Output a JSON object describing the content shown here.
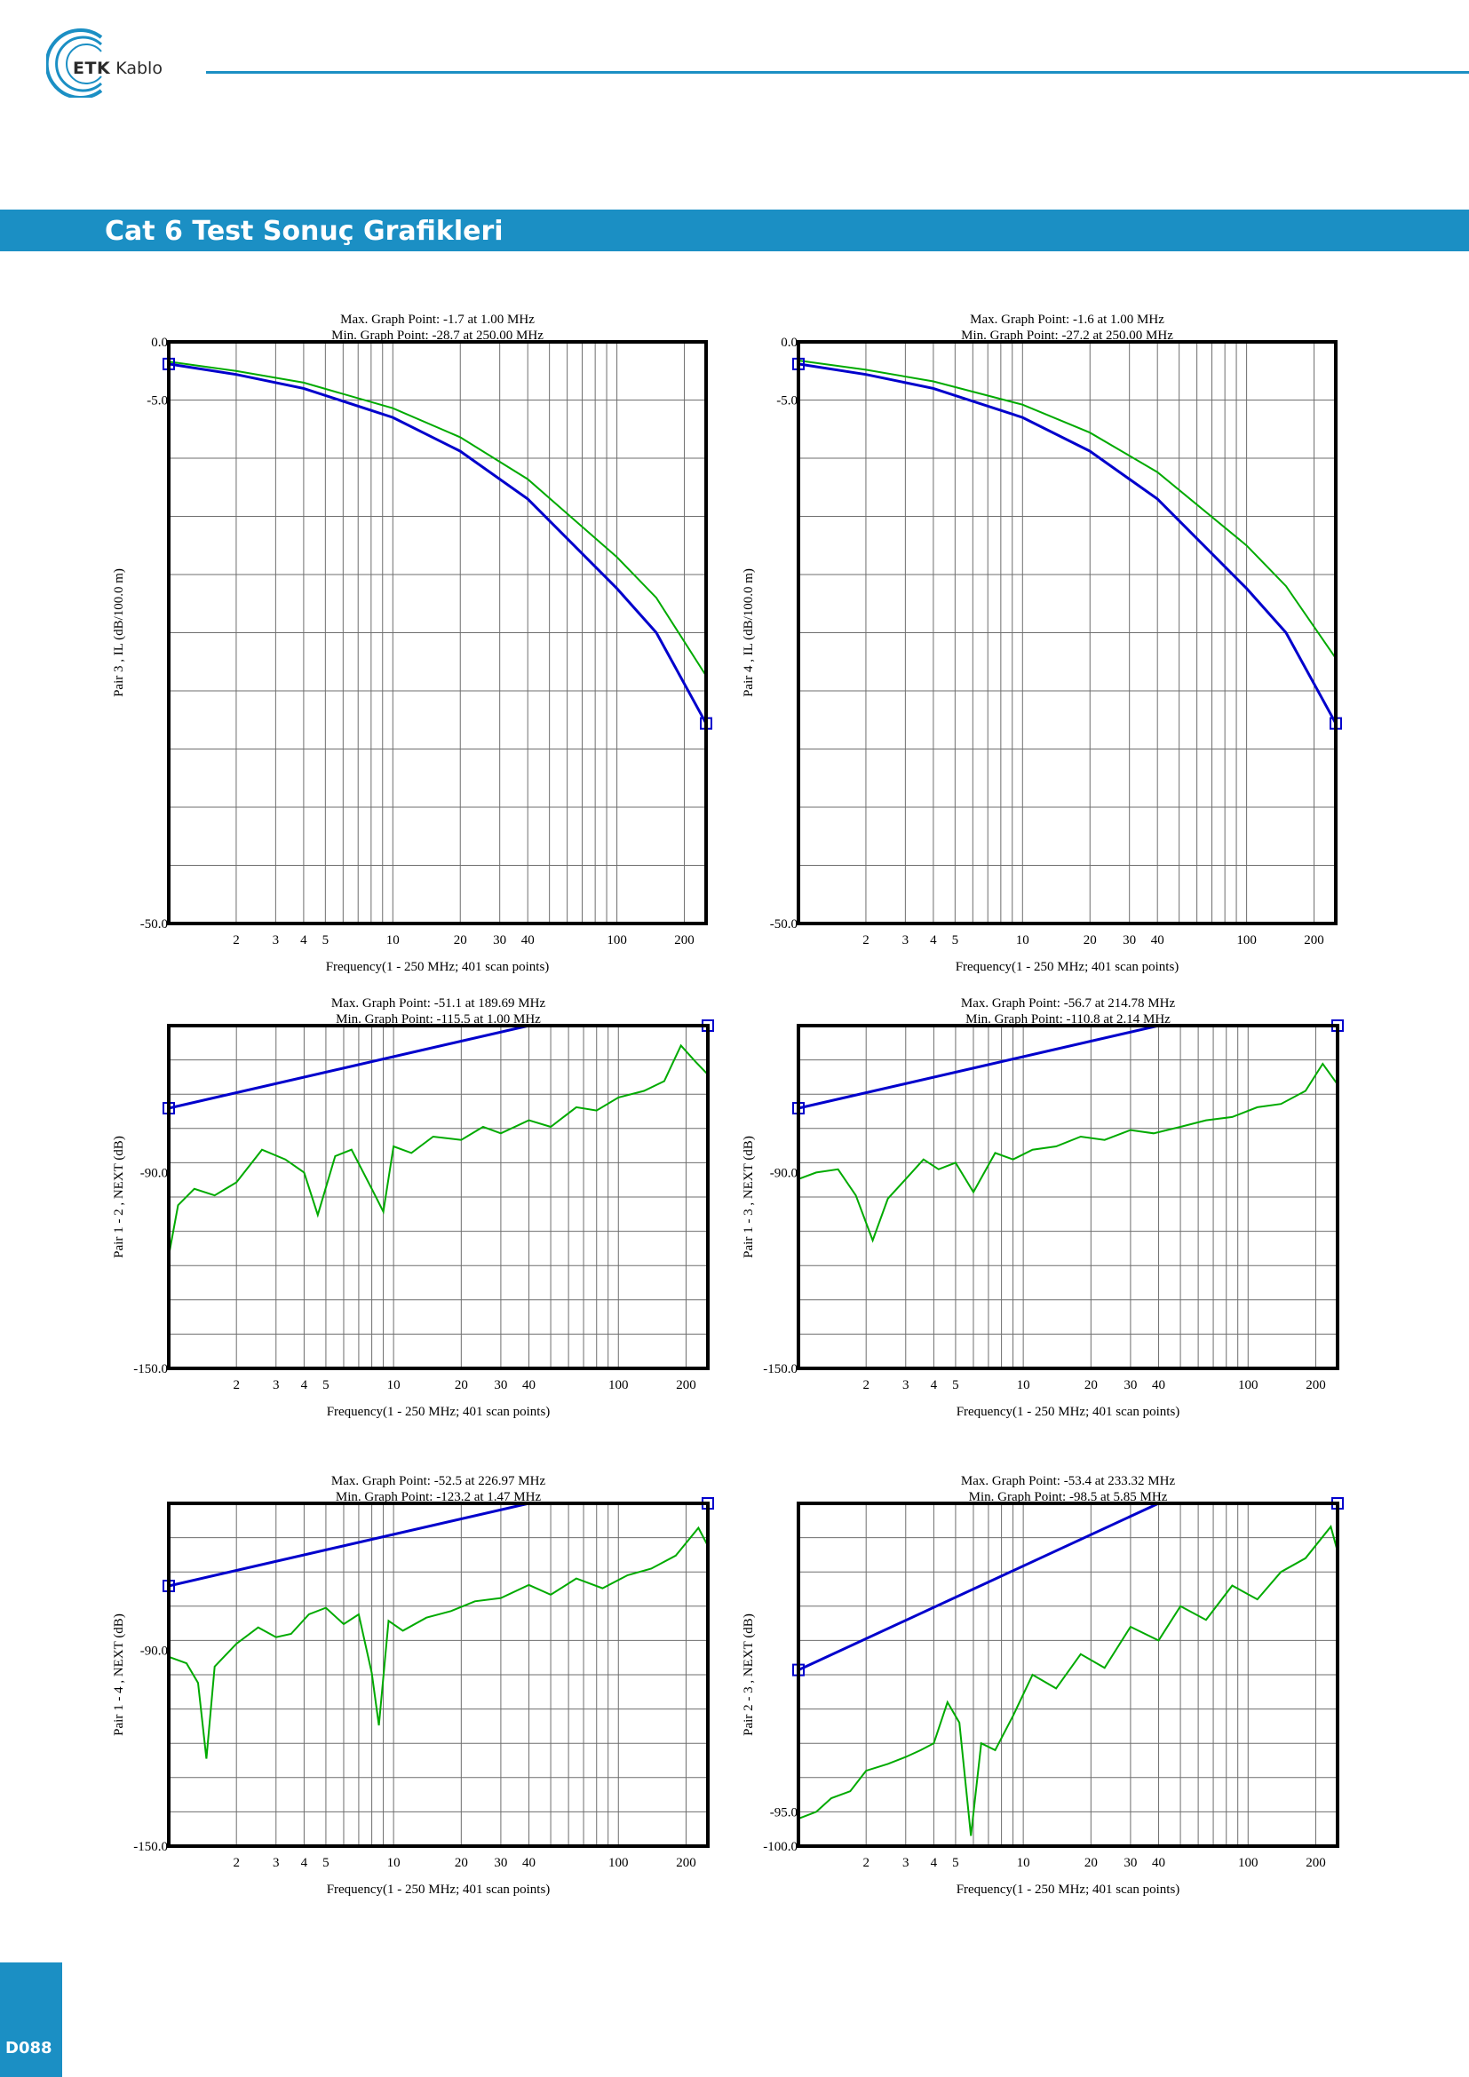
{
  "brand": {
    "logo_text_bold": "ETK",
    "logo_text": "Kablo",
    "color": "#1b8fc4"
  },
  "header": {
    "title": "Cat 6 Test Sonuç Grafikleri"
  },
  "footer": {
    "page_number": "D088"
  },
  "chart_data": [
    {
      "type": "line",
      "max_label": "Max. Graph Point: -1.7 at 1.00 MHz",
      "min_label": "Min. Graph Point: -28.7 at 250.00 MHz",
      "ylabel": "Pair 3 , IL (dB/100.0 m)",
      "xlabel": "Frequency(1 - 250 MHz; 401 scan points)",
      "x_scale": "log",
      "xlim": [
        1,
        250
      ],
      "x_ticks": [
        2,
        3,
        4,
        5,
        10,
        20,
        30,
        40,
        100,
        200
      ],
      "y_tick_labels": [
        {
          "value": 0,
          "text": "0.0"
        },
        {
          "value": -5,
          "text": "-5.0"
        },
        {
          "value": -50,
          "text": "-50.0"
        }
      ],
      "ylim": [
        -50,
        0
      ],
      "series": [
        {
          "role": "limit",
          "color": "#0000cc",
          "x": [
            1,
            2,
            4,
            10,
            20,
            40,
            100,
            150,
            250
          ],
          "y": [
            -1.9,
            -2.8,
            -4.0,
            -6.5,
            -9.4,
            -13.5,
            -21.2,
            -25.0,
            -32.8
          ]
        },
        {
          "role": "measured",
          "color": "#00aa00",
          "x": [
            1,
            2,
            4,
            10,
            20,
            40,
            100,
            150,
            250
          ],
          "y": [
            -1.7,
            -2.5,
            -3.5,
            -5.7,
            -8.2,
            -11.8,
            -18.5,
            -22.0,
            -28.7
          ]
        }
      ]
    },
    {
      "type": "line",
      "max_label": "Max. Graph Point: -1.6 at 1.00 MHz",
      "min_label": "Min. Graph Point: -27.2 at 250.00 MHz",
      "ylabel": "Pair 4 , IL (dB/100.0 m)",
      "xlabel": "Frequency(1 - 250 MHz; 401 scan points)",
      "x_scale": "log",
      "xlim": [
        1,
        250
      ],
      "x_ticks": [
        2,
        3,
        4,
        5,
        10,
        20,
        30,
        40,
        100,
        200
      ],
      "y_tick_labels": [
        {
          "value": 0,
          "text": "0.0"
        },
        {
          "value": -5,
          "text": "-5.0"
        },
        {
          "value": -50,
          "text": "-50.0"
        }
      ],
      "ylim": [
        -50,
        0
      ],
      "series": [
        {
          "role": "limit",
          "color": "#0000cc",
          "x": [
            1,
            2,
            4,
            10,
            20,
            40,
            100,
            150,
            250
          ],
          "y": [
            -1.9,
            -2.8,
            -4.0,
            -6.5,
            -9.4,
            -13.5,
            -21.2,
            -25.0,
            -32.8
          ]
        },
        {
          "role": "measured",
          "color": "#00aa00",
          "x": [
            1,
            2,
            4,
            10,
            20,
            40,
            100,
            150,
            250
          ],
          "y": [
            -1.6,
            -2.4,
            -3.4,
            -5.4,
            -7.8,
            -11.2,
            -17.5,
            -21.0,
            -27.2
          ]
        }
      ]
    },
    {
      "type": "line",
      "max_label": "Max. Graph Point: -51.1 at 189.69 MHz",
      "min_label": "Min. Graph Point: -115.5 at 1.00 MHz",
      "ylabel": "Pair 1 - 2 , NEXT (dB)",
      "xlabel": "Frequency(1 - 250 MHz; 401 scan points)",
      "x_scale": "log",
      "xlim": [
        1,
        250
      ],
      "x_ticks": [
        2,
        3,
        4,
        5,
        10,
        20,
        30,
        40,
        100,
        200
      ],
      "y_tick_labels": [
        {
          "value": -90,
          "text": "-90.0"
        },
        {
          "value": -150,
          "text": "-150.0"
        }
      ],
      "ylim": [
        -150,
        -45
      ],
      "series": [
        {
          "role": "limit",
          "color": "#0000cc",
          "x": [
            1,
            40,
            250
          ],
          "y": [
            -70.3,
            -45.0,
            -45.0
          ]
        },
        {
          "role": "measured",
          "color": "#00aa00",
          "x": [
            1,
            1.1,
            1.3,
            1.6,
            2.0,
            2.6,
            3.3,
            4.0,
            4.6,
            5.5,
            6.5,
            8.0,
            9.0,
            10.0,
            12,
            15,
            20,
            25,
            30,
            40,
            50,
            65,
            80,
            100,
            130,
            160,
            189.69,
            220,
            250
          ],
          "y": [
            -115.5,
            -100,
            -95,
            -97,
            -93,
            -83,
            -86,
            -90,
            -103,
            -85,
            -83,
            -95,
            -102,
            -82,
            -84,
            -79,
            -80,
            -76,
            -78,
            -74,
            -76,
            -70,
            -71,
            -67,
            -65,
            -62,
            -51.1,
            -56,
            -60
          ]
        }
      ]
    },
    {
      "type": "line",
      "max_label": "Max. Graph Point: -56.7 at 214.78 MHz",
      "min_label": "Min. Graph Point: -110.8 at 2.14 MHz",
      "ylabel": "Pair 1 - 3 , NEXT (dB)",
      "xlabel": "Frequency(1 - 250 MHz; 401 scan points)",
      "x_scale": "log",
      "xlim": [
        1,
        250
      ],
      "x_ticks": [
        2,
        3,
        4,
        5,
        10,
        20,
        30,
        40,
        100,
        200
      ],
      "y_tick_labels": [
        {
          "value": -90,
          "text": "-90.0"
        },
        {
          "value": -150,
          "text": "-150.0"
        }
      ],
      "ylim": [
        -150,
        -45
      ],
      "series": [
        {
          "role": "limit",
          "color": "#0000cc",
          "x": [
            1,
            40,
            250
          ],
          "y": [
            -70.3,
            -45.0,
            -45.0
          ]
        },
        {
          "role": "measured",
          "color": "#00aa00",
          "x": [
            1,
            1.2,
            1.5,
            1.8,
            2.14,
            2.5,
            3.0,
            3.6,
            4.2,
            5.0,
            6.0,
            7.5,
            9.0,
            11,
            14,
            18,
            23,
            30,
            38,
            50,
            65,
            85,
            110,
            140,
            180,
            214.78,
            250
          ],
          "y": [
            -92,
            -90,
            -89,
            -97,
            -110.8,
            -98,
            -92,
            -86,
            -89,
            -87,
            -96,
            -84,
            -86,
            -83,
            -82,
            -79,
            -80,
            -77,
            -78,
            -76,
            -74,
            -73,
            -70,
            -69,
            -65,
            -56.7,
            -63
          ]
        }
      ]
    },
    {
      "type": "line",
      "max_label": "Max. Graph Point: -52.5 at 226.97 MHz",
      "min_label": "Min. Graph Point: -123.2 at 1.47 MHz",
      "ylabel": "Pair 1 - 4 , NEXT (dB)",
      "xlabel": "Frequency(1 - 250 MHz; 401 scan points)",
      "x_scale": "log",
      "xlim": [
        1,
        250
      ],
      "x_ticks": [
        2,
        3,
        4,
        5,
        10,
        20,
        30,
        40,
        100,
        200
      ],
      "y_tick_labels": [
        {
          "value": -90,
          "text": "-90.0"
        },
        {
          "value": -150,
          "text": "-150.0"
        }
      ],
      "ylim": [
        -150,
        -45
      ],
      "series": [
        {
          "role": "limit",
          "color": "#0000cc",
          "x": [
            1,
            40,
            250
          ],
          "y": [
            -70.3,
            -45.0,
            -45.0
          ]
        },
        {
          "role": "measured",
          "color": "#00aa00",
          "x": [
            1,
            1.2,
            1.35,
            1.47,
            1.6,
            2.0,
            2.5,
            3.0,
            3.5,
            4.2,
            5.0,
            6.0,
            7.0,
            8.0,
            8.6,
            9.5,
            11,
            14,
            18,
            23,
            30,
            40,
            50,
            65,
            85,
            110,
            140,
            180,
            226.97,
            250
          ],
          "y": [
            -92,
            -94,
            -100,
            -123.2,
            -95,
            -88,
            -83,
            -86,
            -85,
            -79,
            -77,
            -82,
            -79,
            -97,
            -113,
            -81,
            -84,
            -80,
            -78,
            -75,
            -74,
            -70,
            -73,
            -68,
            -71,
            -67,
            -65,
            -61,
            -52.5,
            -58
          ]
        }
      ]
    },
    {
      "type": "line",
      "max_label": "Max. Graph Point: -53.4 at 233.32 MHz",
      "min_label": "Min. Graph Point: -98.5 at 5.85 MHz",
      "ylabel": "Pair 2 - 3 , NEXT (dB)",
      "xlabel": "Frequency(1 - 250 MHz; 401 scan points)",
      "x_scale": "log",
      "xlim": [
        1,
        250
      ],
      "x_ticks": [
        2,
        3,
        4,
        5,
        10,
        20,
        30,
        40,
        100,
        200
      ],
      "y_tick_labels": [
        {
          "value": -95,
          "text": "-95.0"
        },
        {
          "value": -100,
          "text": "-100.0"
        }
      ],
      "ylim": [
        -100,
        -50
      ],
      "series": [
        {
          "role": "limit",
          "color": "#0000cc",
          "x": [
            1,
            40,
            250
          ],
          "y": [
            -74.3,
            -50.0,
            -50.0
          ]
        },
        {
          "role": "measured",
          "color": "#00aa00",
          "x": [
            1,
            1.2,
            1.4,
            1.7,
            2.0,
            2.5,
            3.0,
            3.5,
            4.0,
            4.6,
            5.2,
            5.85,
            6.5,
            7.5,
            9.0,
            11,
            14,
            18,
            23,
            30,
            40,
            50,
            65,
            85,
            110,
            140,
            180,
            233.32,
            250
          ],
          "y": [
            -96,
            -95,
            -93,
            -92,
            -89,
            -88,
            -87,
            -86,
            -85,
            -79,
            -82,
            -98.5,
            -85,
            -86,
            -81,
            -75,
            -77,
            -72,
            -74,
            -68,
            -70,
            -65,
            -67,
            -62,
            -64,
            -60,
            -58,
            -53.4,
            -57
          ]
        }
      ]
    }
  ]
}
